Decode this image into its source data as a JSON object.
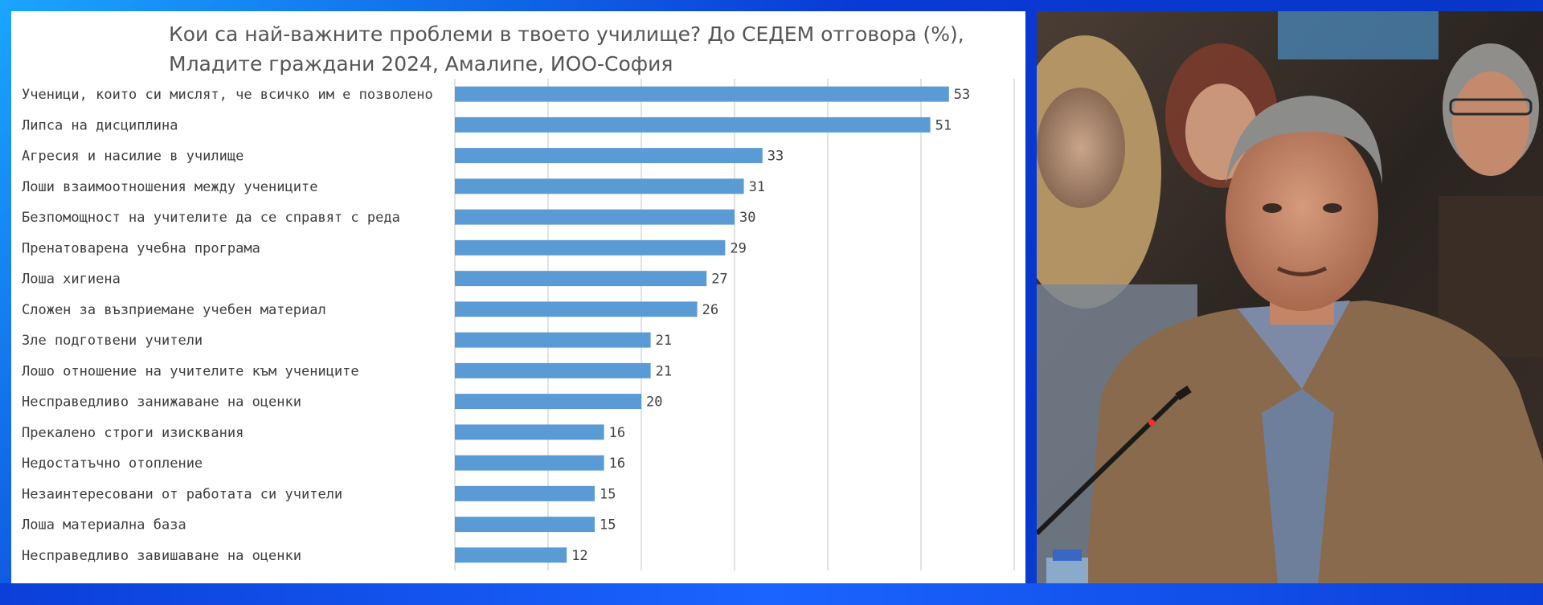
{
  "chart_data": {
    "type": "bar",
    "orientation": "horizontal",
    "title": "Кои са най-важните проблеми в твоето училище? До СЕДЕМ отговора (%),",
    "subtitle": "Младите граждани 2024, Амалипе, ИОО-София",
    "categories": [
      "Ученици, които си мислят, че всичко им е позволено",
      "Липса на дисциплина",
      "Агресия и насилие в училище",
      "Лоши взаимоотношения между учениците",
      "Безпомощност на учителите да се справят с реда",
      "Пренатоварена учебна програма",
      "Лоша хигиена",
      "Сложен за възприемане учебен материал",
      "Зле подготвени учители",
      "Лошо отношение на учителите към учениците",
      "Несправедливо занижаване на оценки",
      "Прекалено строги изисквания",
      "Недостатъчно отопление",
      "Незаинтересовани от работата си учители",
      "Лоша материална база",
      "Несправедливо завишаване на оценки"
    ],
    "values": [
      53,
      51,
      33,
      31,
      30,
      29,
      27,
      26,
      21,
      21,
      20,
      16,
      16,
      15,
      15,
      12
    ],
    "xlim": [
      0,
      60
    ],
    "grid": true,
    "bar_color": "#5b9bd5",
    "data_labels": true
  },
  "colors": {
    "frame": "#0b3fd8",
    "panel": "#ffffff",
    "gridline": "#d9d9d9",
    "label_text": "#404040",
    "title_text": "#555555"
  },
  "video": {
    "description_icon": "person-speaking-at-microphone"
  }
}
